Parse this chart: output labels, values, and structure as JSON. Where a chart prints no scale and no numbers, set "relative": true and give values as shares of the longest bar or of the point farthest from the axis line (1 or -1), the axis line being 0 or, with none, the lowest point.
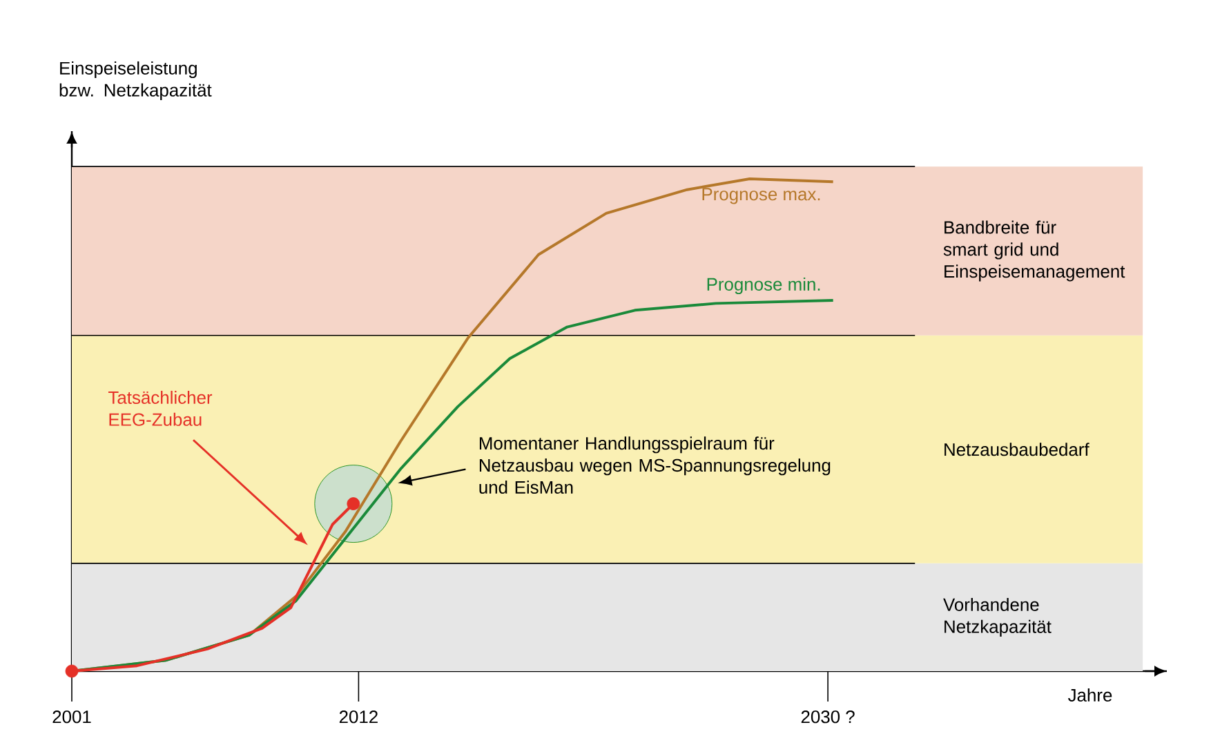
{
  "chart_data": {
    "type": "line",
    "relative": true,
    "ylabel": "Einspeiseleistung bzw. Netzkapazität",
    "xlabel": "Jahre",
    "xlim": [
      2001,
      2043
    ],
    "xticks": [
      2001,
      2012,
      {
        "value": 2030,
        "label": "2030 ?"
      }
    ],
    "series": [
      {
        "name": "Prognose max.",
        "color": "#b5782a",
        "x": [
          2001,
          2004.6,
          2007.8,
          2009.6,
          2011.5,
          2013.6,
          2016.2,
          2018.9,
          2021.5,
          2024.6,
          2027.0,
          2030.2
        ],
        "values": [
          0,
          0.022,
          0.073,
          0.152,
          0.284,
          0.466,
          0.677,
          0.846,
          0.93,
          0.978,
          1.0,
          0.994
        ]
      },
      {
        "name": "Prognose min.",
        "color": "#1a8a3a",
        "x": [
          2001,
          2004.6,
          2007.8,
          2009.6,
          2011.5,
          2013.6,
          2015.8,
          2017.8,
          2020.0,
          2022.6,
          2025.7,
          2030.2
        ],
        "values": [
          0,
          0.022,
          0.073,
          0.143,
          0.27,
          0.41,
          0.537,
          0.635,
          0.699,
          0.733,
          0.747,
          0.753
        ]
      },
      {
        "name": "Tatsächlicher EEG-Zubau",
        "color": "#e53027",
        "x": [
          2001,
          2003.5,
          2006.2,
          2008.3,
          2009.4,
          2010.2,
          2011.0,
          2011.8
        ],
        "values": [
          0,
          0.011,
          0.045,
          0.087,
          0.129,
          0.213,
          0.298,
          0.34
        ]
      },
      {
        "type": "scatter",
        "color": "#e53027",
        "x": [
          2001,
          2011.8
        ],
        "values": [
          0,
          0.34
        ]
      }
    ],
    "bands": [
      {
        "axis": "y",
        "from": 0,
        "to": 0.219,
        "label": "Vorhandene Netzkapazität",
        "color": "#e6e6e6"
      },
      {
        "axis": "y",
        "from": 0.219,
        "to": 0.682,
        "label": "Netzausbaubedarf",
        "color": "#faf0b4"
      },
      {
        "axis": "y",
        "from": 0.682,
        "to": 1.025,
        "label": "Bandbreite für smart grid und Einspeisemanagement",
        "color": "#f5d5c8"
      }
    ],
    "ref_lines": [
      {
        "axis": "y",
        "value": 0.219,
        "color": "#000000"
      },
      {
        "axis": "y",
        "value": 0.682,
        "color": "#000000"
      },
      {
        "axis": "y",
        "value": 1.025,
        "color": "#000000"
      }
    ],
    "annotations": [
      "Momentaner Handlungsspielraum für Netzausbau wegen MS-Spannungsregelung und EisMan"
    ]
  }
}
